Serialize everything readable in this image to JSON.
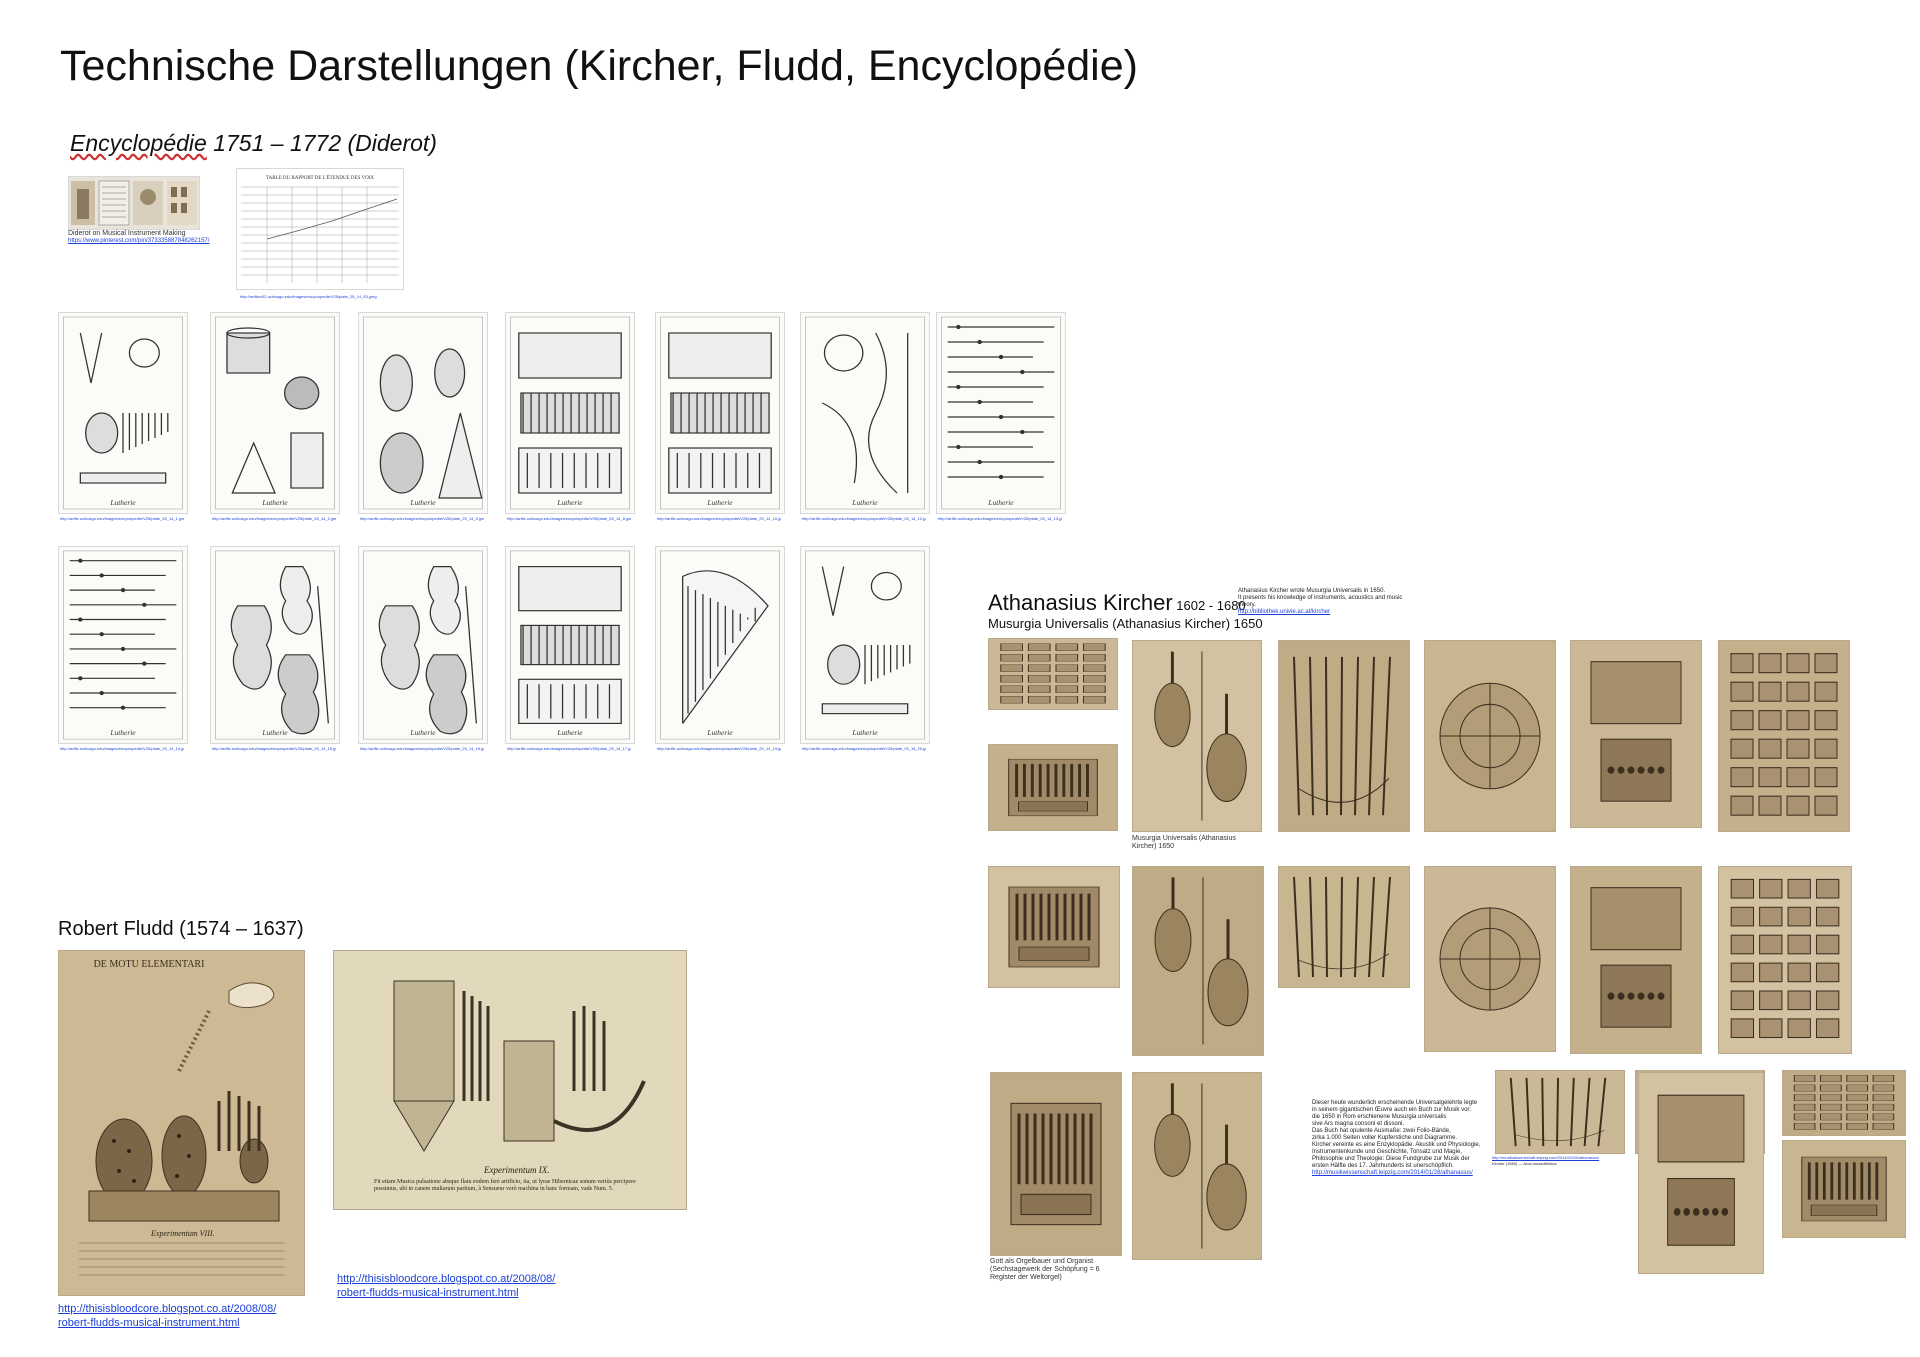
{
  "page": {
    "title": "Technische Darstellungen (Kircher, Fludd, Encyclopédie)"
  },
  "encyclopedie": {
    "heading_word": "Encyclopédie",
    "heading_rest": " 1751 – 1772  (Diderot)",
    "pin_caption": "Diderot on Musical Instrument Making",
    "pin_link": "https://www.pinterest.com/pin/373335887848262157/",
    "table_link": "http://artflsrv02.uchicago.edu/images/encyclopedie/V25/plate_25_14_53.jpeg",
    "row1_links": [
      "http://artflx.uchicago.edu/images/encyclopedie/V25/plate_25_14_1.jpeg",
      "http://artflx.uchicago.edu/images/encyclopedie/V25/plate_25_14_2.jpeg",
      "http://artflx.uchicago.edu/images/encyclopedie/V25/plate_25_14_5.jpeg",
      "http://artflx.uchicago.edu/images/encyclopedie/V25/plate_25_14_8.jpeg",
      "http://artflx.uchicago.edu/images/encyclopedie/V25/plate_25_14_10.jpeg",
      "http://artflx.uchicago.edu/images/encyclopedie/V25/plate_25_14_12.jpeg",
      "http://artflx.uchicago.edu/images/encyclopedie/V25/plate_25_14_13.jpeg"
    ],
    "row2_links": [
      "http://artflx.uchicago.edu/images/encyclopedie/V25/plate_25_14_14.jpeg",
      "http://artflx.uchicago.edu/images/encyclopedie/V25/plate_25_14_15.jpeg",
      "http://artflx.uchicago.edu/images/encyclopedie/V25/plate_25_14_16.jpeg",
      "http://artflx.uchicago.edu/images/encyclopedie/V25/plate_25_14_17.jpeg",
      "http://artflx.uchicago.edu/images/encyclopedie/V25/plate_25_14_19.jpeg",
      "http://artflx.uchicago.edu/images/encyclopedie/V25/plate_25_14_20.jpeg"
    ],
    "plate_label": "Lutherie"
  },
  "fludd": {
    "heading": "Robert Fludd (1574 – 1637)",
    "plate1_header": "DE MOTU ELEMENTARI",
    "plate1_caption": "Experimentum VIII.",
    "plate2_caption": "Experimentum IX.",
    "plate2_text": "Fit etiam Musica pulsatione absque flatu eodem ferè artificio, ita, ut lyrae Hibernicae sonum veriùs percipere possimus, ubi in canem multarum partium, à Sensueur verò machina in hanc formam, vade Num. 5.",
    "link1_line1": "http://thisisbloodcore.blogspot.co.at/2008/08/",
    "link1_line2": "robert-fludds-musical-instrument.html",
    "link2_line1": "http://thisisbloodcore.blogspot.co.at/2008/08/",
    "link2_line2": "robert-fludds-musical-instrument.html"
  },
  "kircher": {
    "name": "Athanasius Kircher",
    "dates": " 1602 - 1680",
    "subtitle": "Musurgia Universalis (Athanasius Kircher) 1650",
    "note_line1": "Athanasius Kircher wrote Musurgia Universalis in 1650.",
    "note_line2": "It presents his knowledge of instruments, acoustics and music theory.",
    "note_link": "http://bibliothek.univie.ac.at/kircher",
    "musurgia_caption": "Musurgia Universalis (Athanasius Kircher) 1650",
    "gott_caption": "Gott als Orgelbauer und Organist (Sechstagewerk der Schöpfung = 6 Register der Weltorgel)",
    "para_lines": [
      "Dieser heute wunderlich erscheinende Universalgelehrte legte",
      "in seinem gigantischen Œuvre auch ein Buch zur Musik vor:",
      "die 1650 in Rom erschienene Musurgia universalis",
      "sive Ars magna consoni et dissoni.",
      "Das Buch hat opulente Ausmaße: zwei Folio-Bände,",
      "zirka 1.000 Seiten voller Kupferstiche und Diagramme.",
      "Kircher vereinte es eine Enzyklopädie. Akustik und Physiologie,",
      "Instrumentenkunde und Geschichte, Tonsatz und Magie,",
      "Philosophie und Theologie: Diese Fundgrube zur Musik der",
      "ersten Hälfte des 17. Jahrhunderts ist unerschöpflich."
    ],
    "para_link": "http://musikwissenschaft.leipzig.com/2014/01/28/athanasius/",
    "arca_link": "http://musikwissenschaft.leipzig.com/2014/01/28/athanasius/",
    "arca_caption": "Kircher (1650) — Arca musarithmica"
  }
}
